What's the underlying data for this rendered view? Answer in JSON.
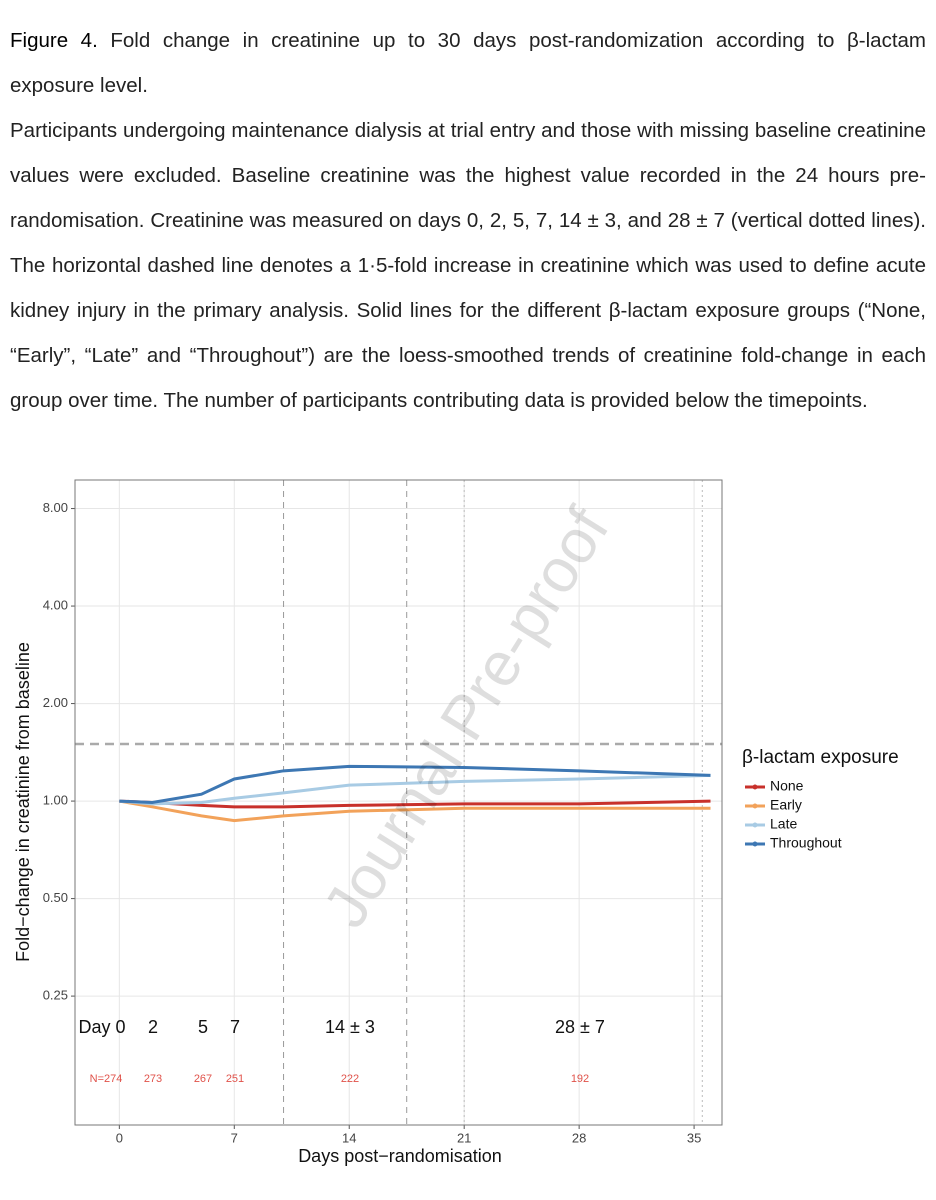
{
  "caption": {
    "label": "Figure 4.",
    "title": "Fold change in creatinine up to 30 days post-randomization according to β-lactam exposure level.",
    "body": "Participants undergoing maintenance dialysis at trial entry and those with missing baseline creatinine values were excluded. Baseline creatinine was the highest value recorded in the 24 hours pre-randomisation. Creatinine was measured on days 0, 2, 5, 7, 14 ± 3, and 28 ± 7 (vertical dotted lines). The horizontal dashed line denotes a 1·5-fold increase in creatinine which was used to define acute kidney injury in the primary analysis. Solid lines for the different β-lactam exposure groups (“None, “Early”, “Late” and “Throughout”) are the loess-smoothed trends of creatinine fold-change in each group over time. The number of participants contributing data is provided below the timepoints."
  },
  "chart_data": {
    "type": "line",
    "x_label": "Days post−randomisation",
    "y_label": "Fold−change in creatinine from baseline",
    "legend_title": "β-lactam exposure",
    "legend": "right",
    "grid": true,
    "log_y": true,
    "watermark": "Journal Pre-proof",
    "x": [
      0,
      2,
      5,
      7,
      10,
      14,
      21,
      28,
      36
    ],
    "series": [
      {
        "name": "None",
        "color": "#c8312b",
        "values": [
          1,
          0.99,
          0.97,
          0.96,
          0.96,
          0.97,
          0.98,
          0.98,
          1
        ]
      },
      {
        "name": "Early",
        "color": "#f2a25a",
        "values": [
          1,
          0.96,
          0.9,
          0.87,
          0.9,
          0.93,
          0.95,
          0.95,
          0.95
        ]
      },
      {
        "name": "Late",
        "color": "#a8cbe4",
        "values": [
          1,
          0.98,
          0.99,
          1.02,
          1.06,
          1.12,
          1.15,
          1.17,
          1.2
        ]
      },
      {
        "name": "Throughout",
        "color": "#3d77b3",
        "values": [
          1,
          0.99,
          1.05,
          1.17,
          1.24,
          1.28,
          1.27,
          1.24,
          1.2
        ]
      }
    ],
    "xlim": [
      -2.7,
      36.7
    ],
    "xticks": [
      0,
      7,
      14,
      21,
      28,
      35
    ],
    "ylim": [
      0.1,
      9.8
    ],
    "yticks": [
      {
        "value": 0.25,
        "label": "0.25"
      },
      {
        "value": 0.5,
        "label": "0.50"
      },
      {
        "value": 1,
        "label": "1.00"
      },
      {
        "value": 2,
        "label": "2.00"
      },
      {
        "value": 4,
        "label": "4.00"
      },
      {
        "value": 8,
        "label": "8.00"
      }
    ],
    "hline": 1.5,
    "dashed_vlines": [
      10,
      17.5
    ],
    "dotted_vlines": [
      21,
      35.5
    ],
    "timepoint_labels": [
      "Day 0",
      "2",
      "5",
      "7",
      "14 ± 3",
      "28 ± 7"
    ],
    "n_labels": [
      "N=274",
      "273",
      "267",
      "251",
      "222",
      "192"
    ]
  }
}
